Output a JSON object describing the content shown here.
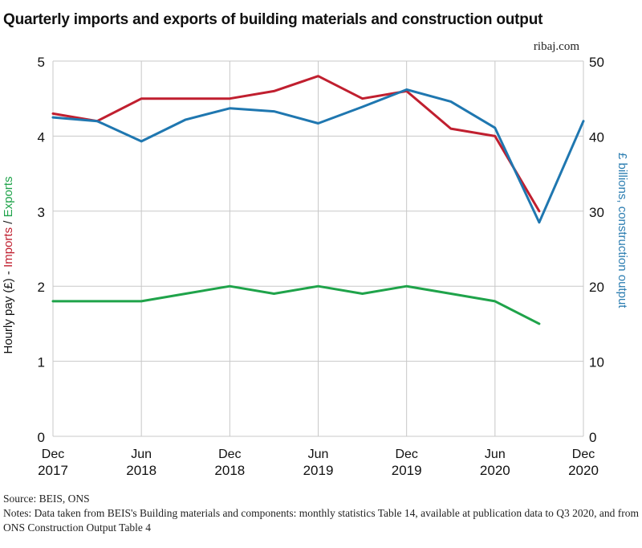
{
  "title": "Quarterly imports and exports of building materials and construction output",
  "watermark": "ribaj.com",
  "y_label_left": {
    "part1": "Hourly pay (£) - ",
    "part2": "Imports",
    "part3": " / ",
    "part4": "Exports"
  },
  "y_label_right": "£ billions, construction output",
  "source": "Source: BEIS, ONS",
  "notes": "Notes: Data taken from BEIS's Building materials and components: monthly statistics Table 14, available at publication data to Q3 2020, and from ONS Construction Output Table 4",
  "colors": {
    "imports": "#c01f2f",
    "exports": "#1fa34a",
    "output": "#1f77b0",
    "grid": "#c8c8c8"
  },
  "chart_data": {
    "type": "line",
    "x_ticks": [
      {
        "month": "Dec",
        "year": "2017"
      },
      {
        "month": "Jun",
        "year": "2018"
      },
      {
        "month": "Dec",
        "year": "2018"
      },
      {
        "month": "Jun",
        "year": "2019"
      },
      {
        "month": "Dec",
        "year": "2019"
      },
      {
        "month": "Jun",
        "year": "2020"
      },
      {
        "month": "Dec",
        "year": "2020"
      }
    ],
    "x_range": [
      "2017-12",
      "2020-12"
    ],
    "y_left": {
      "range": [
        0,
        5
      ],
      "ticks": [
        0,
        1,
        2,
        3,
        4,
        5
      ]
    },
    "y_right": {
      "range": [
        0,
        50
      ],
      "ticks": [
        0,
        10,
        20,
        30,
        40,
        50
      ]
    },
    "grid": true,
    "series": [
      {
        "name": "Imports",
        "axis": "left",
        "x": [
          "2017-12",
          "2018-03",
          "2018-06",
          "2018-09",
          "2018-12",
          "2019-03",
          "2019-06",
          "2019-09",
          "2019-12",
          "2020-03",
          "2020-06",
          "2020-09"
        ],
        "values": [
          4.3,
          4.2,
          4.5,
          4.5,
          4.5,
          4.6,
          4.8,
          4.5,
          4.6,
          4.1,
          4.0,
          3.0
        ]
      },
      {
        "name": "Exports",
        "axis": "left",
        "x": [
          "2017-12",
          "2018-03",
          "2018-06",
          "2018-09",
          "2018-12",
          "2019-03",
          "2019-06",
          "2019-09",
          "2019-12",
          "2020-03",
          "2020-06",
          "2020-09"
        ],
        "values": [
          1.8,
          1.8,
          1.8,
          1.9,
          2.0,
          1.9,
          2.0,
          1.9,
          2.0,
          1.9,
          1.8,
          1.5
        ]
      },
      {
        "name": "Construction output",
        "axis": "right",
        "x": [
          "2017-12",
          "2018-03",
          "2018-06",
          "2018-09",
          "2018-12",
          "2019-03",
          "2019-06",
          "2019-09",
          "2019-12",
          "2020-03",
          "2020-06",
          "2020-09",
          "2020-12"
        ],
        "values": [
          42.5,
          42.0,
          39.3,
          42.2,
          43.7,
          43.3,
          41.7,
          43.9,
          46.2,
          44.6,
          41.1,
          28.5,
          42.0
        ]
      }
    ]
  }
}
